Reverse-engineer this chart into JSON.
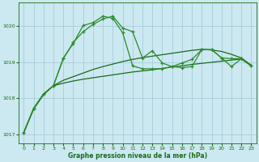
{
  "title": "Graphe pression niveau de la mer (hPa)",
  "bg_color": "#cce8f0",
  "grid_color": "#a0c8d8",
  "line_color_dark": "#1a6b1a",
  "line_color_light": "#2d8b2d",
  "xlim": [
    -0.5,
    23.5
  ],
  "ylim": [
    1016.75,
    1020.65
  ],
  "yticks": [
    1017,
    1018,
    1019,
    1020
  ],
  "xticks": [
    0,
    1,
    2,
    3,
    4,
    5,
    6,
    7,
    8,
    9,
    10,
    11,
    12,
    13,
    14,
    15,
    16,
    17,
    18,
    19,
    20,
    21,
    22,
    23
  ],
  "s1_x": [
    0,
    1,
    2,
    3,
    4,
    5,
    6,
    7,
    8,
    9,
    10,
    11,
    12,
    13,
    14,
    15,
    16,
    17,
    18,
    19,
    20,
    21,
    22,
    23
  ],
  "s1_y": [
    1017.05,
    1017.7,
    1018.1,
    1018.35,
    1018.42,
    1018.48,
    1018.53,
    1018.57,
    1018.61,
    1018.65,
    1018.69,
    1018.73,
    1018.76,
    1018.79,
    1018.83,
    1018.87,
    1018.9,
    1018.94,
    1018.97,
    1019.0,
    1019.03,
    1019.06,
    1019.09,
    1018.9
  ],
  "s2_x": [
    0,
    1,
    2,
    3,
    4,
    5,
    6,
    7,
    8,
    9,
    10,
    11,
    12,
    13,
    14,
    15,
    16,
    17,
    18,
    19,
    20,
    21,
    22,
    23
  ],
  "s2_y": [
    1017.05,
    1017.72,
    1018.12,
    1018.35,
    1018.5,
    1018.6,
    1018.7,
    1018.8,
    1018.88,
    1018.95,
    1019.02,
    1019.08,
    1019.13,
    1019.17,
    1019.21,
    1019.25,
    1019.29,
    1019.33,
    1019.36,
    1019.34,
    1019.3,
    1019.22,
    1019.12,
    1018.92
  ],
  "s3_x": [
    0,
    1,
    2,
    3,
    4,
    5,
    6,
    7,
    8,
    9,
    10,
    11,
    12,
    13,
    14,
    15,
    16,
    17,
    18,
    19,
    20,
    21,
    22,
    23
  ],
  "s3_y": [
    1017.05,
    1017.72,
    1018.12,
    1018.35,
    1019.1,
    1019.55,
    1019.85,
    1020.05,
    1020.2,
    1020.28,
    1019.95,
    1019.85,
    1019.12,
    1019.32,
    1018.98,
    1018.88,
    1018.85,
    1018.88,
    1019.35,
    1019.35,
    1019.12,
    1019.1,
    1019.1,
    1018.9
  ],
  "s4_x": [
    0,
    1,
    2,
    3,
    4,
    5,
    6,
    7,
    8,
    9,
    10,
    11,
    12,
    13,
    14,
    15,
    16,
    17,
    18,
    19,
    20,
    21,
    22,
    23
  ],
  "s4_y": [
    1017.05,
    1017.72,
    1018.12,
    1018.35,
    1019.12,
    1019.52,
    1020.02,
    1020.1,
    1020.28,
    1020.22,
    1019.82,
    1018.9,
    1018.82,
    1018.82,
    1018.82,
    1018.88,
    1018.98,
    1019.08,
    1019.35,
    1019.35,
    1019.12,
    1018.88,
    1019.1,
    1018.9
  ]
}
